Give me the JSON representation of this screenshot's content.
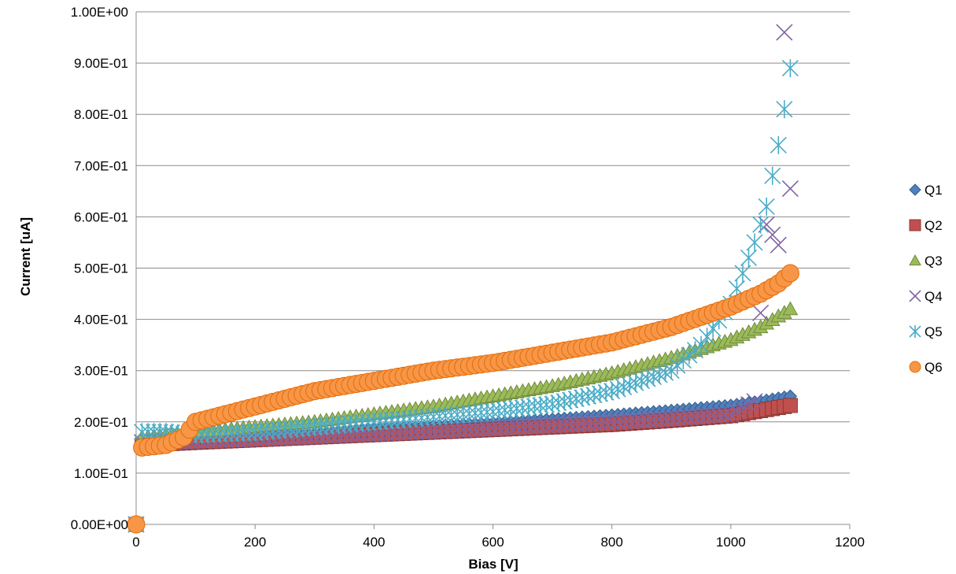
{
  "chart_data": {
    "type": "scatter",
    "title": "",
    "xlabel": "Bias [V]",
    "ylabel": "Current [uA]",
    "xlim": [
      0,
      1200
    ],
    "ylim": [
      0,
      1.0
    ],
    "x_ticks": [
      0,
      200,
      400,
      600,
      800,
      1000,
      1200
    ],
    "x_tick_labels": [
      "0",
      "200",
      "400",
      "600",
      "800",
      "1000",
      "1200"
    ],
    "y_ticks": [
      0,
      0.1,
      0.2,
      0.3,
      0.4,
      0.5,
      0.6,
      0.7,
      0.8,
      0.9,
      1.0
    ],
    "y_tick_labels": [
      "0.00E+00",
      "1.00E-01",
      "2.00E-01",
      "3.00E-01",
      "4.00E-01",
      "5.00E-01",
      "6.00E-01",
      "7.00E-01",
      "8.00E-01",
      "9.00E-01",
      "1.00E+00"
    ],
    "grid": "horizontal major gridlines",
    "legend_position": "right",
    "series": [
      {
        "name": "Q1",
        "marker": "diamond",
        "color": "#4F81BD",
        "stroke": "#385D8A",
        "x": [
          0,
          10,
          100,
          200,
          300,
          400,
          500,
          600,
          700,
          800,
          900,
          1000,
          1050,
          1100
        ],
        "y": [
          0.0,
          0.16,
          0.165,
          0.172,
          0.178,
          0.185,
          0.192,
          0.198,
          0.205,
          0.213,
          0.222,
          0.232,
          0.24,
          0.25
        ]
      },
      {
        "name": "Q2",
        "marker": "square",
        "color": "#C0504D",
        "stroke": "#8C3836",
        "x": [
          0,
          10,
          100,
          200,
          300,
          400,
          500,
          600,
          700,
          800,
          900,
          1000,
          1050,
          1100
        ],
        "y": [
          0.0,
          0.155,
          0.16,
          0.165,
          0.17,
          0.175,
          0.18,
          0.185,
          0.19,
          0.195,
          0.203,
          0.212,
          0.222,
          0.232
        ]
      },
      {
        "name": "Q3",
        "marker": "triangle",
        "color": "#9BBB59",
        "stroke": "#71893F",
        "x": [
          0,
          10,
          50,
          100,
          200,
          300,
          400,
          500,
          600,
          700,
          800,
          900,
          1000,
          1050,
          1100
        ],
        "y": [
          0.0,
          0.17,
          0.175,
          0.18,
          0.19,
          0.2,
          0.215,
          0.23,
          0.25,
          0.27,
          0.295,
          0.325,
          0.36,
          0.385,
          0.42
        ]
      },
      {
        "name": "Q4",
        "marker": "x",
        "color": "#8064A2",
        "stroke": "#8064A2",
        "x": [
          0,
          10,
          100,
          200,
          300,
          400,
          500,
          600,
          700,
          800,
          900,
          1000,
          1040,
          1060,
          1080,
          1090,
          1100
        ],
        "y": [
          0.0,
          0.16,
          0.163,
          0.167,
          0.172,
          0.177,
          0.182,
          0.188,
          0.194,
          0.2,
          0.207,
          0.215,
          0.24,
          0.585,
          0.545,
          0.96,
          0.655
        ]
      },
      {
        "name": "Q5",
        "marker": "asterisk",
        "color": "#4BACC6",
        "stroke": "#4BACC6",
        "x": [
          0,
          10,
          50,
          100,
          200,
          300,
          400,
          500,
          600,
          700,
          800,
          900,
          950,
          1000,
          1020,
          1040,
          1060,
          1070,
          1080,
          1090,
          1100
        ],
        "y": [
          0.0,
          0.18,
          0.18,
          0.175,
          0.18,
          0.19,
          0.2,
          0.21,
          0.22,
          0.235,
          0.26,
          0.3,
          0.35,
          0.43,
          0.49,
          0.55,
          0.62,
          0.68,
          0.74,
          0.81,
          0.89
        ]
      },
      {
        "name": "Q6",
        "marker": "circle",
        "color": "#F79646",
        "stroke": "#E46C0A",
        "x": [
          0,
          10,
          50,
          80,
          100,
          150,
          200,
          300,
          400,
          500,
          600,
          700,
          800,
          900,
          950,
          1000,
          1050,
          1080,
          1100
        ],
        "y": [
          0.0,
          0.15,
          0.155,
          0.17,
          0.2,
          0.215,
          0.23,
          0.26,
          0.28,
          0.3,
          0.315,
          0.335,
          0.355,
          0.385,
          0.405,
          0.425,
          0.45,
          0.47,
          0.49
        ]
      }
    ]
  }
}
